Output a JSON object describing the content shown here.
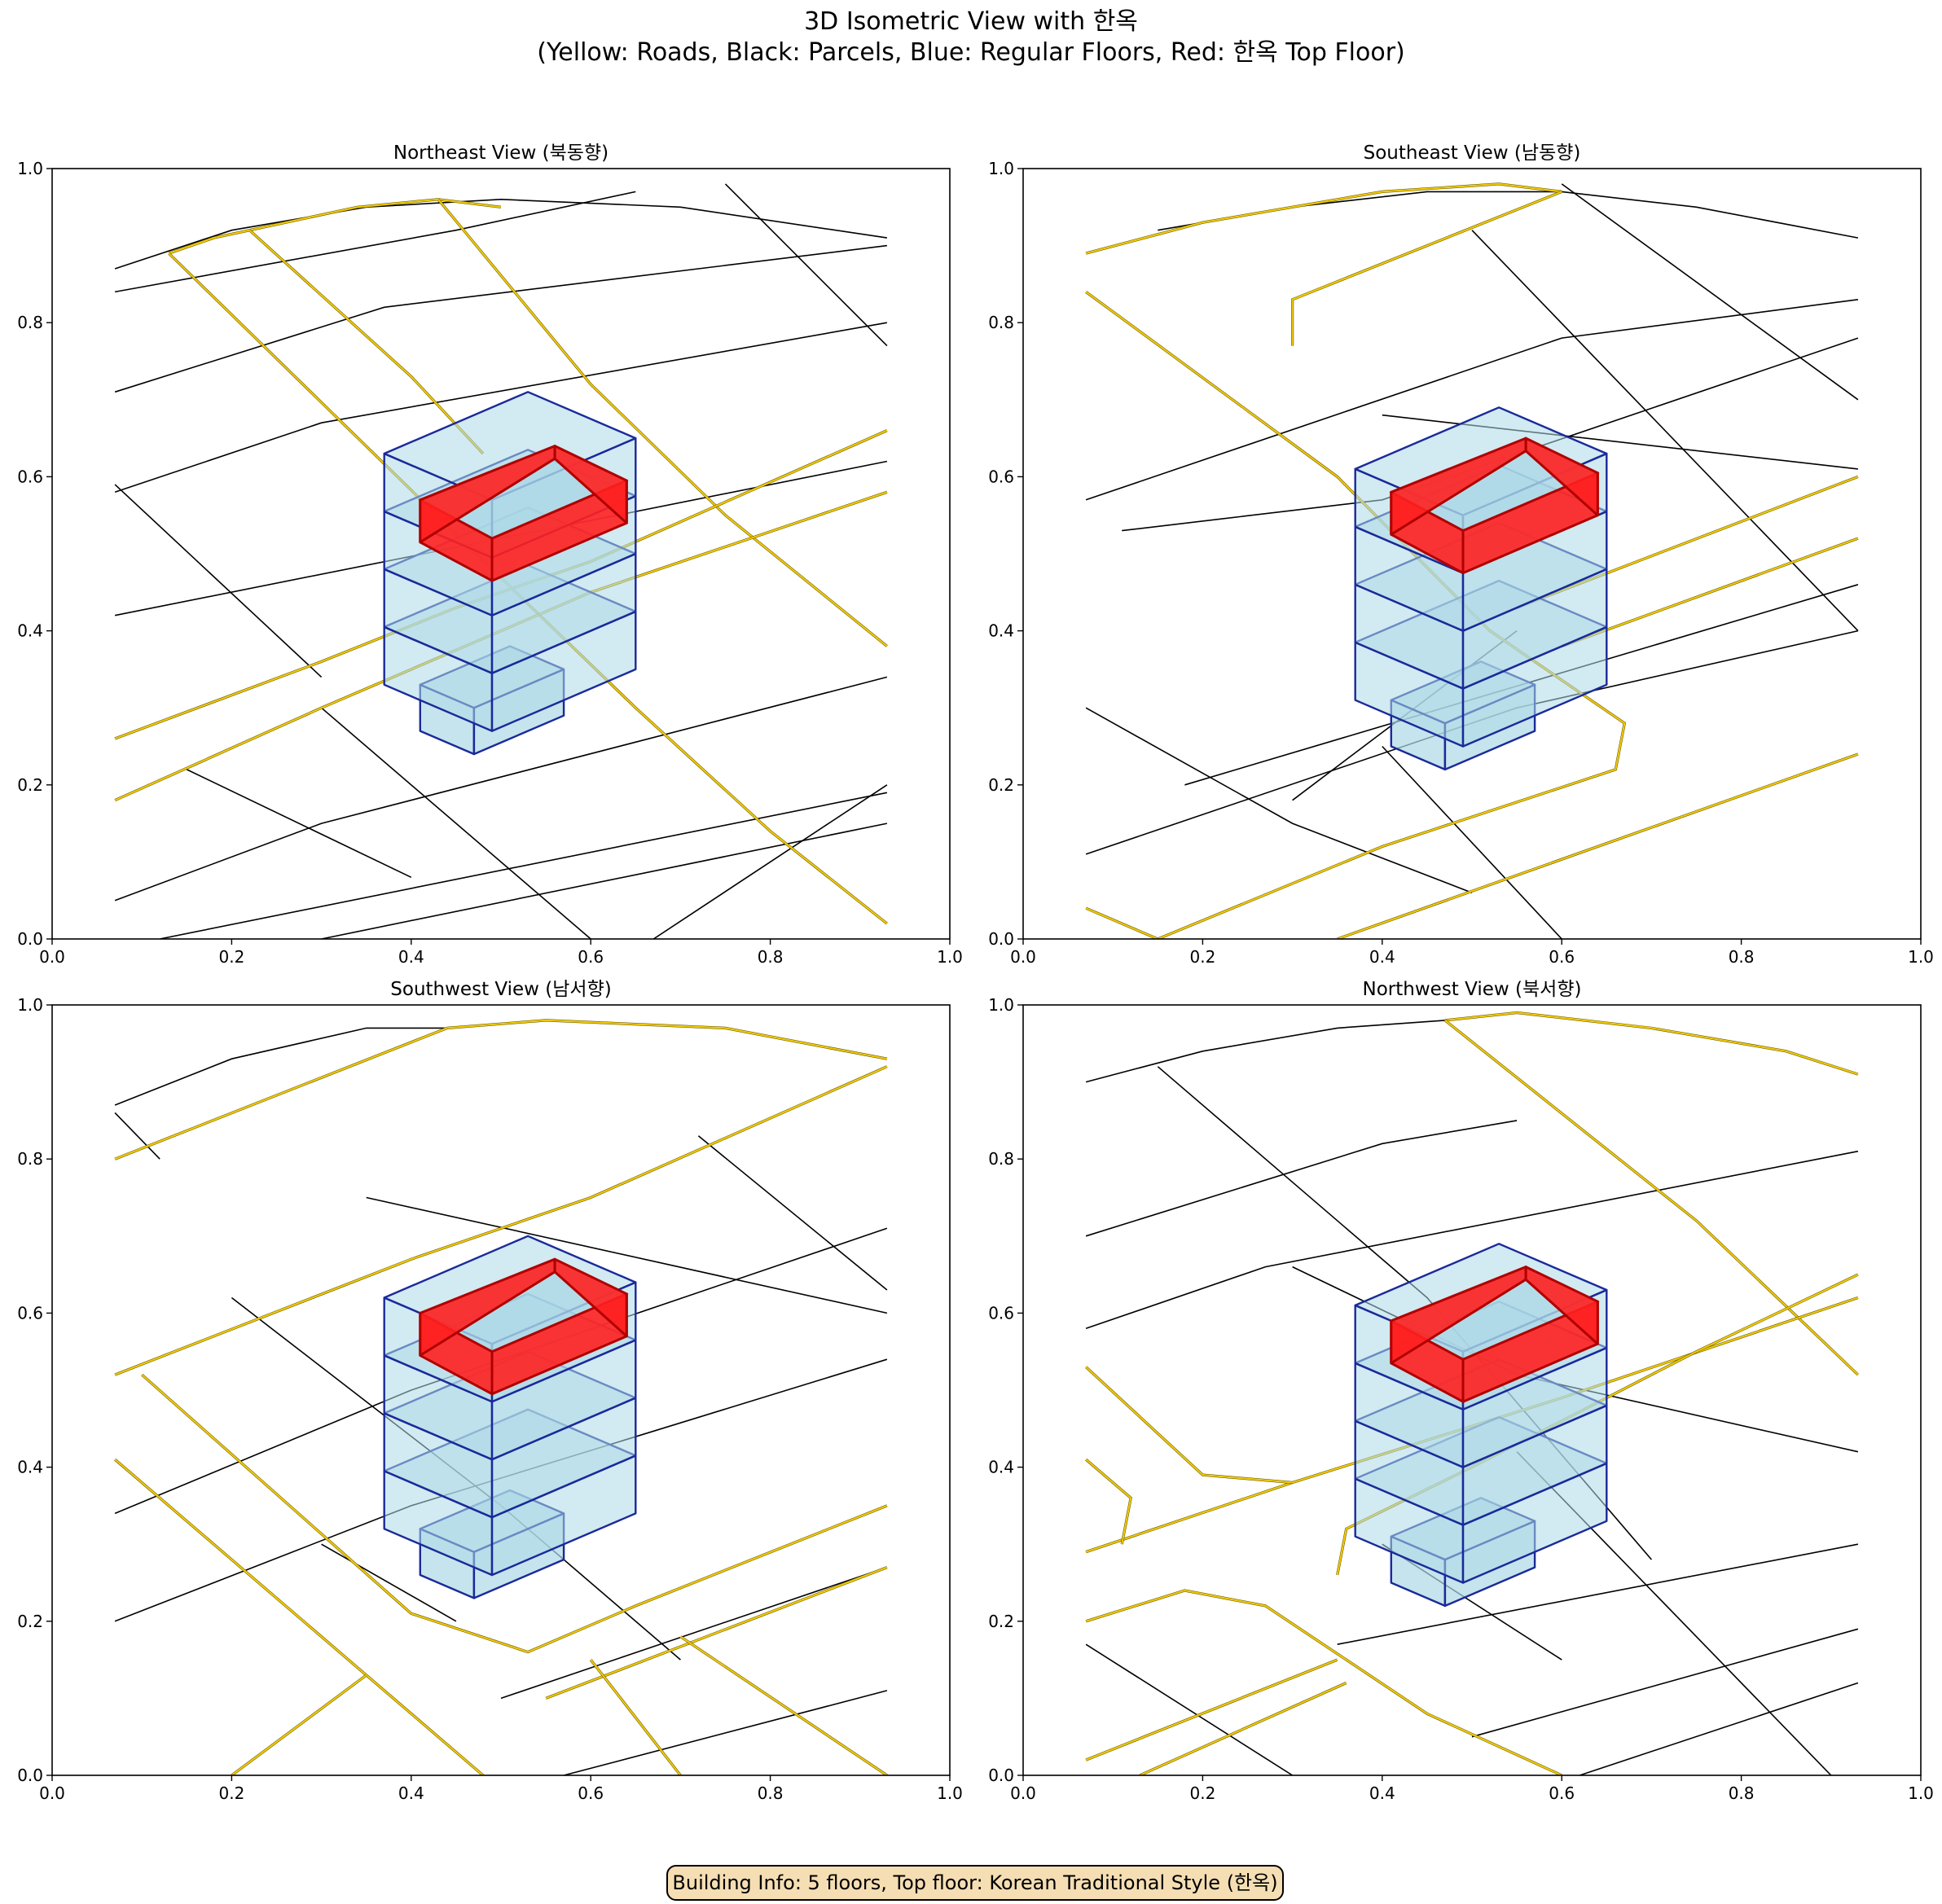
{
  "figure": {
    "title_line1": "3D Isometric View with 한옥",
    "title_line2": "(Yellow: Roads, Black: Parcels, Blue: Regular Floors, Red: 한옥 Top Floor)",
    "info_box": "Building Info: 5 floors, Top floor: Korean Traditional Style (한옥)"
  },
  "colors": {
    "road": "#ffd700",
    "road_edge": "#5a4a00",
    "parcel": "#000000",
    "floor_fill": "#add8e6",
    "floor_edge": "#1a2a9a",
    "hanok_fill": "#ff2020",
    "hanok_edge": "#b00000"
  },
  "chart_data": [
    {
      "type": "line",
      "title": "Northeast View (북동향)",
      "xlim": [
        0,
        1
      ],
      "ylim": [
        0,
        1
      ],
      "xticks": [
        "0.0",
        "0.2",
        "0.4",
        "0.6",
        "0.8",
        "1.0"
      ],
      "yticks": [
        "0.0",
        "0.2",
        "0.4",
        "0.6",
        "0.8",
        "1.0"
      ],
      "roads": [
        [
          [
            0.13,
            0.89
          ],
          [
            0.18,
            0.91
          ],
          [
            0.22,
            0.92
          ],
          [
            0.34,
            0.95
          ],
          [
            0.43,
            0.96
          ],
          [
            0.5,
            0.95
          ]
        ],
        [
          [
            0.13,
            0.89
          ],
          [
            0.49,
            0.48
          ],
          [
            0.65,
            0.3
          ],
          [
            0.8,
            0.14
          ],
          [
            0.93,
            0.02
          ]
        ],
        [
          [
            0.22,
            0.92
          ],
          [
            0.4,
            0.73
          ],
          [
            0.48,
            0.63
          ]
        ],
        [
          [
            0.43,
            0.96
          ],
          [
            0.6,
            0.72
          ],
          [
            0.75,
            0.55
          ],
          [
            0.93,
            0.38
          ]
        ],
        [
          [
            0.07,
            0.26
          ],
          [
            0.3,
            0.36
          ],
          [
            0.45,
            0.43
          ],
          [
            0.6,
            0.49
          ],
          [
            0.93,
            0.66
          ]
        ],
        [
          [
            0.07,
            0.18
          ],
          [
            0.3,
            0.3
          ],
          [
            0.6,
            0.45
          ],
          [
            0.93,
            0.58
          ]
        ]
      ],
      "parcels": [
        [
          [
            0.07,
            0.87
          ],
          [
            0.2,
            0.92
          ],
          [
            0.35,
            0.95
          ],
          [
            0.5,
            0.96
          ],
          [
            0.7,
            0.95
          ],
          [
            0.93,
            0.91
          ]
        ],
        [
          [
            0.07,
            0.84
          ],
          [
            0.45,
            0.92
          ],
          [
            0.65,
            0.97
          ]
        ],
        [
          [
            0.07,
            0.71
          ],
          [
            0.37,
            0.82
          ],
          [
            0.93,
            0.9
          ]
        ],
        [
          [
            0.07,
            0.58
          ],
          [
            0.3,
            0.67
          ],
          [
            0.93,
            0.8
          ]
        ],
        [
          [
            0.07,
            0.42
          ],
          [
            0.93,
            0.62
          ]
        ],
        [
          [
            0.07,
            0.05
          ],
          [
            0.3,
            0.15
          ],
          [
            0.93,
            0.34
          ]
        ],
        [
          [
            0.12,
            0.0
          ],
          [
            0.93,
            0.19
          ]
        ],
        [
          [
            0.3,
            0.0
          ],
          [
            0.93,
            0.15
          ]
        ],
        [
          [
            0.07,
            0.59
          ],
          [
            0.3,
            0.34
          ]
        ],
        [
          [
            0.15,
            0.22
          ],
          [
            0.4,
            0.08
          ]
        ],
        [
          [
            0.3,
            0.3
          ],
          [
            0.6,
            0.0
          ]
        ],
        [
          [
            0.67,
            0.0
          ],
          [
            0.93,
            0.2
          ]
        ],
        [
          [
            0.75,
            0.98
          ],
          [
            0.93,
            0.77
          ]
        ]
      ],
      "building": {
        "center": [
          0.5,
          0.42
        ],
        "floors": 5,
        "base_y": 0.24,
        "floor_height": 0.075,
        "top_y": 0.52
      }
    },
    {
      "type": "line",
      "title": "Southeast View (남동향)",
      "xlim": [
        0,
        1
      ],
      "ylim": [
        0,
        1
      ],
      "xticks": [
        "0.0",
        "0.2",
        "0.4",
        "0.6",
        "0.8",
        "1.0"
      ],
      "yticks": [
        "0.0",
        "0.2",
        "0.4",
        "0.6",
        "0.8",
        "1.0"
      ],
      "roads": [
        [
          [
            0.07,
            0.89
          ],
          [
            0.2,
            0.93
          ],
          [
            0.4,
            0.97
          ],
          [
            0.53,
            0.98
          ],
          [
            0.6,
            0.97
          ]
        ],
        [
          [
            0.07,
            0.84
          ],
          [
            0.35,
            0.6
          ],
          [
            0.52,
            0.4
          ],
          [
            0.67,
            0.28
          ],
          [
            0.66,
            0.22
          ],
          [
            0.4,
            0.12
          ],
          [
            0.15,
            0.0
          ]
        ],
        [
          [
            0.3,
            0.77
          ],
          [
            0.3,
            0.83
          ],
          [
            0.6,
            0.97
          ]
        ],
        [
          [
            0.55,
            0.43
          ],
          [
            0.93,
            0.6
          ]
        ],
        [
          [
            0.6,
            0.38
          ],
          [
            0.93,
            0.52
          ]
        ],
        [
          [
            0.35,
            0.0
          ],
          [
            0.93,
            0.24
          ]
        ],
        [
          [
            0.07,
            0.04
          ],
          [
            0.15,
            0.0
          ]
        ]
      ],
      "parcels": [
        [
          [
            0.15,
            0.92
          ],
          [
            0.3,
            0.95
          ],
          [
            0.45,
            0.97
          ],
          [
            0.6,
            0.97
          ],
          [
            0.75,
            0.95
          ],
          [
            0.93,
            0.91
          ]
        ],
        [
          [
            0.07,
            0.57
          ],
          [
            0.6,
            0.78
          ],
          [
            0.93,
            0.83
          ]
        ],
        [
          [
            0.11,
            0.53
          ],
          [
            0.4,
            0.57
          ],
          [
            0.93,
            0.78
          ]
        ],
        [
          [
            0.07,
            0.3
          ],
          [
            0.3,
            0.15
          ],
          [
            0.5,
            0.06
          ]
        ],
        [
          [
            0.07,
            0.11
          ],
          [
            0.55,
            0.3
          ],
          [
            0.93,
            0.4
          ]
        ],
        [
          [
            0.18,
            0.2
          ],
          [
            0.93,
            0.46
          ]
        ],
        [
          [
            0.4,
            0.68
          ],
          [
            0.93,
            0.61
          ]
        ],
        [
          [
            0.5,
            0.92
          ],
          [
            0.93,
            0.4
          ]
        ],
        [
          [
            0.6,
            0.98
          ],
          [
            0.93,
            0.7
          ]
        ],
        [
          [
            0.4,
            0.25
          ],
          [
            0.6,
            0.0
          ]
        ],
        [
          [
            0.3,
            0.18
          ],
          [
            0.55,
            0.4
          ]
        ]
      ],
      "building": {
        "center": [
          0.5,
          0.42
        ],
        "floors": 5,
        "base_y": 0.22,
        "floor_height": 0.075,
        "top_y": 0.53
      }
    },
    {
      "type": "line",
      "title": "Southwest View (남서향)",
      "xlim": [
        0,
        1
      ],
      "ylim": [
        0,
        1
      ],
      "xticks": [
        "0.0",
        "0.2",
        "0.4",
        "0.6",
        "0.8",
        "1.0"
      ],
      "yticks": [
        "0.0",
        "0.2",
        "0.4",
        "0.6",
        "0.8",
        "1.0"
      ],
      "roads": [
        [
          [
            0.44,
            0.97
          ],
          [
            0.55,
            0.98
          ],
          [
            0.75,
            0.97
          ],
          [
            0.93,
            0.93
          ]
        ],
        [
          [
            0.07,
            0.8
          ],
          [
            0.44,
            0.97
          ]
        ],
        [
          [
            0.07,
            0.52
          ],
          [
            0.4,
            0.67
          ],
          [
            0.6,
            0.75
          ],
          [
            0.93,
            0.92
          ]
        ],
        [
          [
            0.07,
            0.41
          ],
          [
            0.35,
            0.13
          ],
          [
            0.48,
            0.0
          ]
        ],
        [
          [
            0.1,
            0.52
          ],
          [
            0.4,
            0.21
          ],
          [
            0.53,
            0.16
          ],
          [
            0.65,
            0.22
          ],
          [
            0.93,
            0.35
          ]
        ],
        [
          [
            0.55,
            0.1
          ],
          [
            0.93,
            0.27
          ]
        ],
        [
          [
            0.2,
            0.0
          ],
          [
            0.35,
            0.13
          ]
        ],
        [
          [
            0.6,
            0.15
          ],
          [
            0.7,
            0.0
          ]
        ],
        [
          [
            0.7,
            0.18
          ],
          [
            0.93,
            0.0
          ]
        ]
      ],
      "parcels": [
        [
          [
            0.07,
            0.87
          ],
          [
            0.2,
            0.93
          ],
          [
            0.35,
            0.97
          ],
          [
            0.44,
            0.97
          ]
        ],
        [
          [
            0.07,
            0.86
          ],
          [
            0.12,
            0.8
          ]
        ],
        [
          [
            0.07,
            0.34
          ],
          [
            0.4,
            0.5
          ],
          [
            0.93,
            0.71
          ]
        ],
        [
          [
            0.07,
            0.2
          ],
          [
            0.4,
            0.35
          ],
          [
            0.93,
            0.54
          ]
        ],
        [
          [
            0.35,
            0.75
          ],
          [
            0.93,
            0.6
          ]
        ],
        [
          [
            0.2,
            0.62
          ],
          [
            0.5,
            0.35
          ],
          [
            0.7,
            0.15
          ]
        ],
        [
          [
            0.72,
            0.83
          ],
          [
            0.93,
            0.63
          ]
        ],
        [
          [
            0.5,
            0.1
          ],
          [
            0.93,
            0.27
          ]
        ],
        [
          [
            0.57,
            0.0
          ],
          [
            0.93,
            0.11
          ]
        ],
        [
          [
            0.3,
            0.3
          ],
          [
            0.45,
            0.2
          ]
        ]
      ],
      "building": {
        "center": [
          0.5,
          0.42
        ],
        "floors": 5,
        "base_y": 0.23,
        "floor_height": 0.075,
        "top_y": 0.55
      }
    },
    {
      "type": "line",
      "title": "Northwest View (북서향)",
      "xlim": [
        0,
        1
      ],
      "ylim": [
        0,
        1
      ],
      "xticks": [
        "0.0",
        "0.2",
        "0.4",
        "0.6",
        "0.8",
        "1.0"
      ],
      "yticks": [
        "0.0",
        "0.2",
        "0.4",
        "0.6",
        "0.8",
        "1.0"
      ],
      "roads": [
        [
          [
            0.47,
            0.98
          ],
          [
            0.55,
            0.99
          ],
          [
            0.7,
            0.97
          ],
          [
            0.85,
            0.94
          ],
          [
            0.93,
            0.91
          ]
        ],
        [
          [
            0.47,
            0.98
          ],
          [
            0.75,
            0.72
          ],
          [
            0.93,
            0.52
          ]
        ],
        [
          [
            0.07,
            0.29
          ],
          [
            0.3,
            0.38
          ],
          [
            0.6,
            0.49
          ],
          [
            0.93,
            0.62
          ]
        ],
        [
          [
            0.07,
            0.53
          ],
          [
            0.2,
            0.39
          ],
          [
            0.3,
            0.38
          ]
        ],
        [
          [
            0.07,
            0.41
          ],
          [
            0.12,
            0.36
          ],
          [
            0.11,
            0.3
          ]
        ],
        [
          [
            0.07,
            0.2
          ],
          [
            0.18,
            0.24
          ],
          [
            0.27,
            0.22
          ],
          [
            0.45,
            0.08
          ],
          [
            0.6,
            0.0
          ]
        ],
        [
          [
            0.35,
            0.26
          ],
          [
            0.36,
            0.32
          ],
          [
            0.5,
            0.4
          ],
          [
            0.75,
            0.55
          ],
          [
            0.93,
            0.65
          ]
        ],
        [
          [
            0.13,
            0.0
          ],
          [
            0.36,
            0.12
          ]
        ],
        [
          [
            0.07,
            0.02
          ],
          [
            0.35,
            0.15
          ]
        ]
      ],
      "parcels": [
        [
          [
            0.07,
            0.9
          ],
          [
            0.2,
            0.94
          ],
          [
            0.35,
            0.97
          ],
          [
            0.47,
            0.98
          ]
        ],
        [
          [
            0.07,
            0.7
          ],
          [
            0.4,
            0.82
          ],
          [
            0.55,
            0.85
          ]
        ],
        [
          [
            0.07,
            0.58
          ],
          [
            0.27,
            0.66
          ],
          [
            0.93,
            0.81
          ]
        ],
        [
          [
            0.3,
            0.66
          ],
          [
            0.55,
            0.52
          ],
          [
            0.93,
            0.42
          ]
        ],
        [
          [
            0.15,
            0.92
          ],
          [
            0.45,
            0.62
          ],
          [
            0.7,
            0.28
          ]
        ],
        [
          [
            0.07,
            0.17
          ],
          [
            0.3,
            0.0
          ]
        ],
        [
          [
            0.35,
            0.17
          ],
          [
            0.93,
            0.3
          ]
        ],
        [
          [
            0.5,
            0.05
          ],
          [
            0.93,
            0.19
          ]
        ],
        [
          [
            0.62,
            0.0
          ],
          [
            0.93,
            0.12
          ]
        ],
        [
          [
            0.4,
            0.3
          ],
          [
            0.6,
            0.15
          ]
        ],
        [
          [
            0.55,
            0.42
          ],
          [
            0.9,
            0.0
          ]
        ]
      ],
      "building": {
        "center": [
          0.5,
          0.42
        ],
        "floors": 5,
        "base_y": 0.22,
        "floor_height": 0.075,
        "top_y": 0.54
      }
    }
  ]
}
